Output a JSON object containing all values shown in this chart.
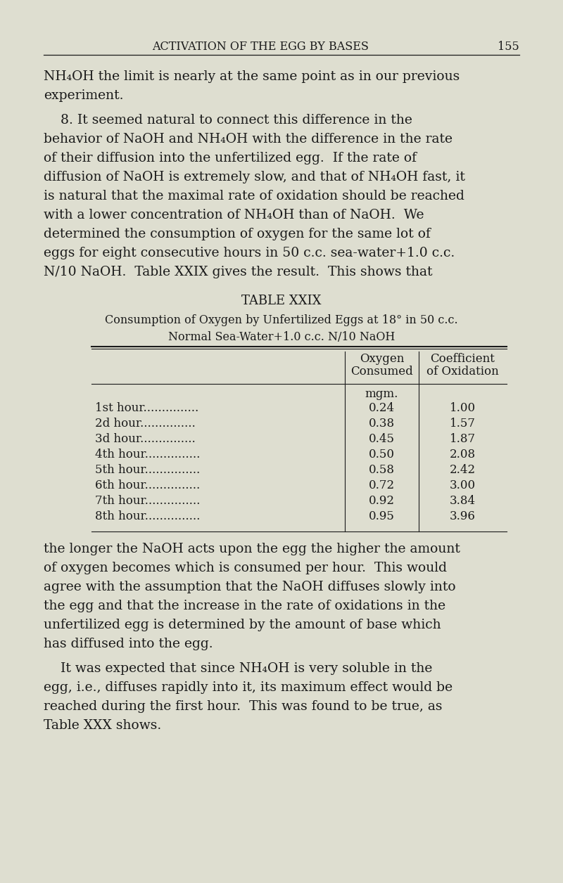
{
  "bg_color": "#deded0",
  "text_color": "#1a1a1a",
  "page_width": 8.0,
  "page_height": 12.56,
  "header_title": "Activation of the Egg by Bases",
  "header_page": "155",
  "para1_line1": "NH₄OH the limit is nearly at the same point as in our previous",
  "para1_line2": "experiment.",
  "para2_lines": [
    "    8. It seemed natural to connect this difference in the",
    "behavior of NaOH and NH₄OH with the difference in the rate",
    "of their diffusion into the unfertilized egg.  If the rate of",
    "diffusion of NaOH is extremely slow, and that of NH₄OH fast, it",
    "is natural that the maximal rate of oxidation should be reached",
    "with a lower concentration of NH₄OH than of NaOH.  We",
    "determined the consumption of oxygen for the same lot of",
    "eggs for eight consecutive hours in 50 c.c. sea-water+1.0 c.c.",
    "N/10 NaOH.  Table XXIX gives the result.  This shows that"
  ],
  "table_title": "TABLE XXIX",
  "table_subtitle1": "Consumption of Oxygen by Unfertilized Eggs at 18° in 50 c.c.",
  "table_subtitle2": "Normal Sea-Water+1.0 c.c. N/10 NaOH",
  "col1_header_line1": "Oxygen",
  "col1_header_line2": "Consumed",
  "col2_header_line1": "Coefficient",
  "col2_header_line2": "of Oxidation",
  "unit_label": "mgm.",
  "rows": [
    {
      "label": "1st hour",
      "oxygen": "0.24",
      "coeff": "1.00"
    },
    {
      "label": "2d hour",
      "oxygen": "0.38",
      "coeff": "1.57"
    },
    {
      "label": "3d hour",
      "oxygen": "0.45",
      "coeff": "1.87"
    },
    {
      "label": "4th hour",
      "oxygen": "0.50",
      "coeff": "2.08"
    },
    {
      "label": "5th hour",
      "oxygen": "0.58",
      "coeff": "2.42"
    },
    {
      "label": "6th hour",
      "oxygen": "0.72",
      "coeff": "3.00"
    },
    {
      "label": "7th hour",
      "oxygen": "0.92",
      "coeff": "3.84"
    },
    {
      "label": "8th hour",
      "oxygen": "0.95",
      "coeff": "3.96"
    }
  ],
  "para3_lines": [
    "the longer the NaOH acts upon the egg the higher the amount",
    "of oxygen becomes which is consumed per hour.  This would",
    "agree with the assumption that the NaOH diffuses slowly into",
    "the egg and that the increase in the rate of oxidations in the",
    "unfertilized egg is determined by the amount of base which",
    "has diffused into the egg."
  ],
  "para4_lines": [
    "    It was expected that since NH₄OH is very soluble in the",
    "egg, i.e., diffuses rapidly into it, its maximum effect would be",
    "reached during the first hour.  This was found to be true, as",
    "Table XXX shows."
  ]
}
